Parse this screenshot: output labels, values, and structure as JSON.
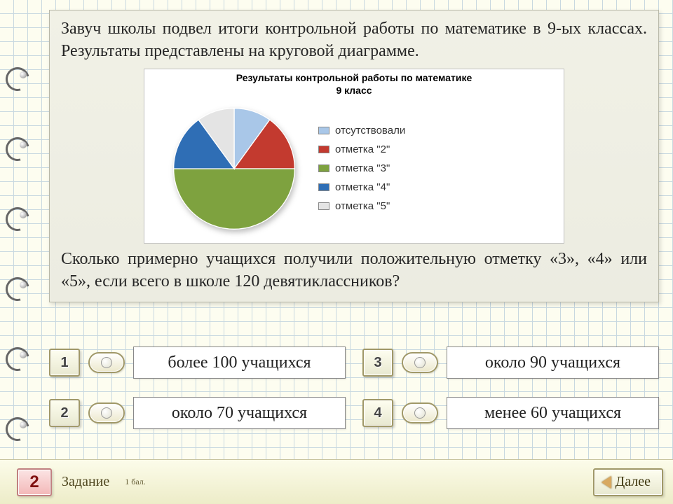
{
  "colors": {
    "card_bg": "#ecece1",
    "page_bg": "#fdfdf0",
    "grid": "#c8d8e0",
    "accent_red": "#f3b8b8",
    "accent_border": "#a09868"
  },
  "question": {
    "intro": "Завуч школы подвел итоги контрольной работы по математике в 9-ых классах. Результаты представлены на круговой диаграмме.",
    "prompt": "Сколько примерно учащихся получили положительную отметку «3», «4» или «5», если всего в школе 120 девятиклассников?"
  },
  "chart": {
    "type": "pie",
    "title": "Результаты контрольной работы по математике",
    "subtitle": "9 класс",
    "background_color": "#ffffff",
    "title_fontsize": 14,
    "legend_fontsize": 15,
    "slices": [
      {
        "label": "отсутствовали",
        "value": 10,
        "color": "#a9c7e8"
      },
      {
        "label": "отметка \"2\"",
        "value": 15,
        "color": "#c33a2f"
      },
      {
        "label": "отметка \"3\"",
        "value": 50,
        "color": "#7ea23f"
      },
      {
        "label": "отметка \"4\"",
        "value": 15,
        "color": "#2f6eb5"
      },
      {
        "label": "отметка \"5\"",
        "value": 10,
        "color": "#e4e4e4"
      }
    ]
  },
  "answers": [
    {
      "n": "1",
      "text": "более 100 учащихся"
    },
    {
      "n": "2",
      "text": "около 70 учащихся"
    },
    {
      "n": "3",
      "text": "около 90 учащихся"
    },
    {
      "n": "4",
      "text": "менее 60 учащихся"
    }
  ],
  "footer": {
    "task_number": "2",
    "task_label": "Задание",
    "points": "1 бал.",
    "next": "Далее"
  }
}
